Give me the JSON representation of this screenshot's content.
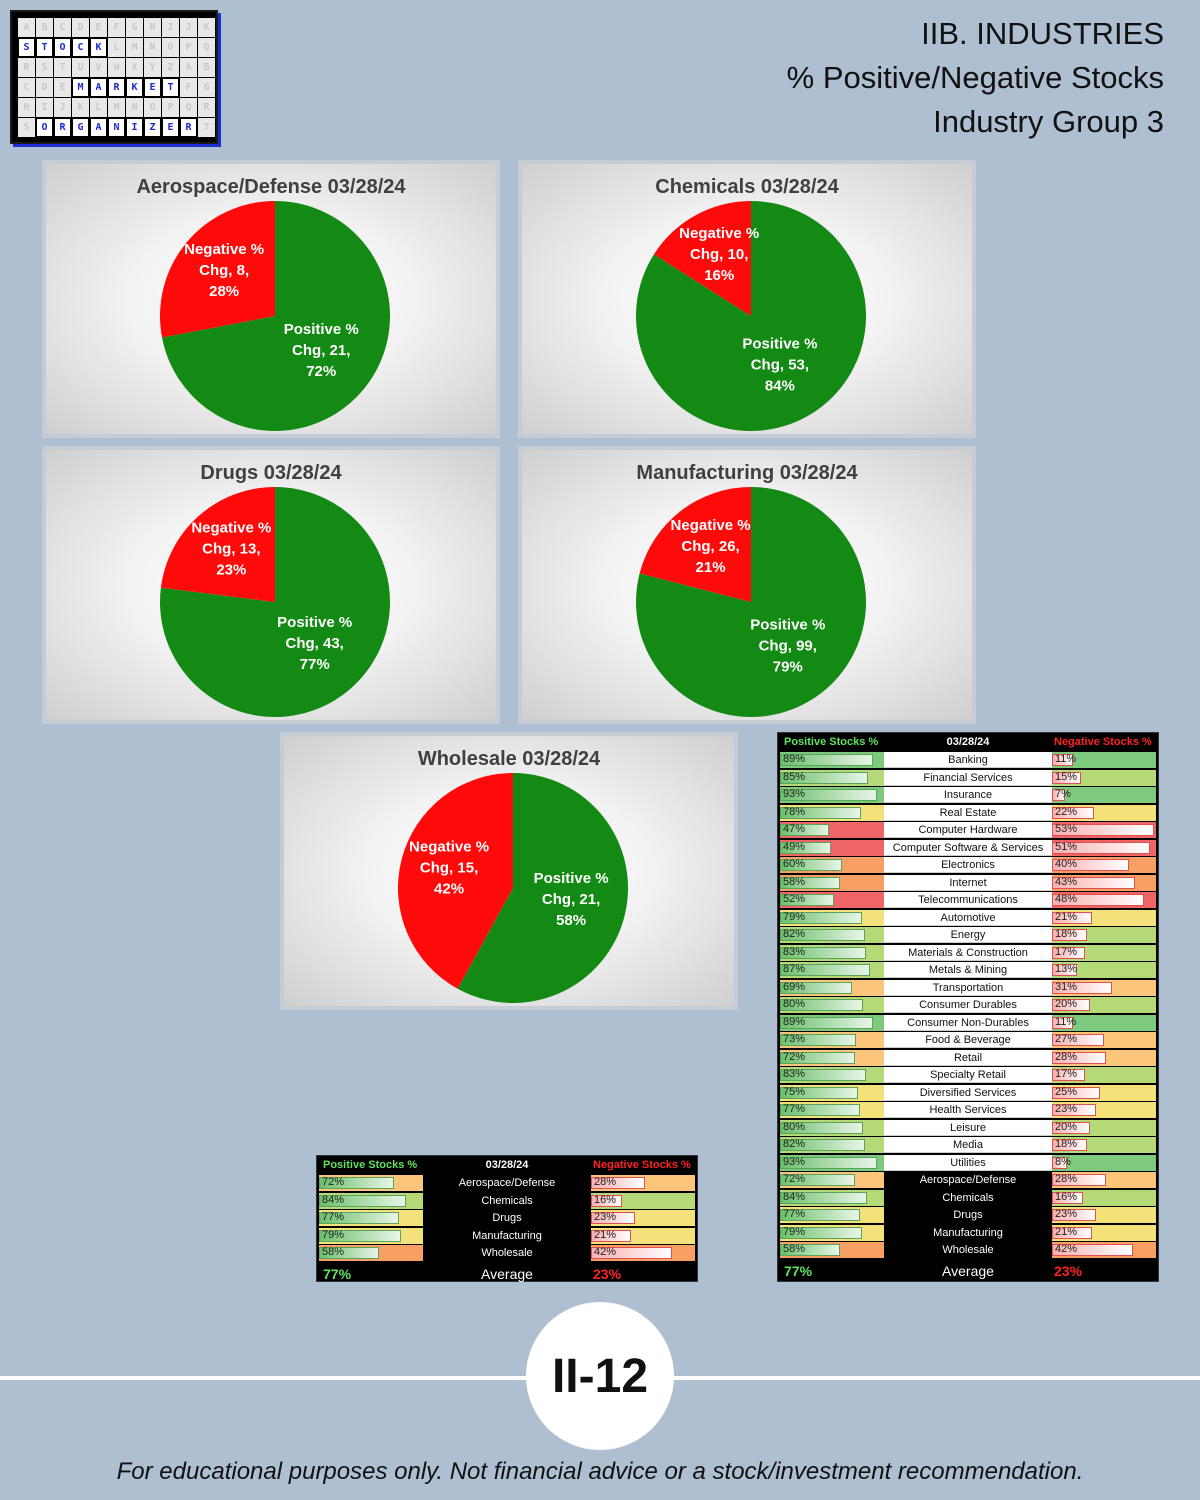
{
  "logo": {
    "rows": [
      [
        "A",
        "B",
        "C",
        "D",
        "E",
        "F",
        "G",
        "H",
        "I",
        "J",
        "K"
      ],
      [
        "S",
        "T",
        "O",
        "C",
        "K",
        "L",
        "M",
        "N",
        "O",
        "P",
        "Q"
      ],
      [
        "R",
        "S",
        "T",
        "U",
        "V",
        "W",
        "X",
        "Y",
        "Z",
        "A",
        "B"
      ],
      [
        "C",
        "D",
        "E",
        "M",
        "A",
        "R",
        "K",
        "E",
        "T",
        "F",
        "G"
      ],
      [
        "H",
        "I",
        "J",
        "K",
        "L",
        "M",
        "N",
        "O",
        "P",
        "Q",
        "R"
      ],
      [
        "S",
        "O",
        "R",
        "G",
        "A",
        "N",
        "I",
        "Z",
        "E",
        "R",
        "T"
      ]
    ],
    "words": [
      "STOCK",
      "MARKET",
      "ORGANIZER"
    ]
  },
  "header": {
    "line1": "IIB. INDUSTRIES",
    "line2": "% Positive/Negative Stocks",
    "line3": "Industry Group 3"
  },
  "colors": {
    "positive": "#138a13",
    "negative": "#ff0a0a",
    "background": "#adbfd0"
  },
  "chart_data": [
    {
      "type": "pie",
      "title": "Aerospace/Defense 03/28/24",
      "slices": [
        {
          "label": "Negative % Chg",
          "value": 8,
          "pct": "28%"
        },
        {
          "label": "Positive % Chg",
          "value": 21,
          "pct": "72%"
        }
      ]
    },
    {
      "type": "pie",
      "title": "Chemicals 03/28/24",
      "slices": [
        {
          "label": "Negative % Chg",
          "value": 10,
          "pct": "16%"
        },
        {
          "label": "Positive % Chg",
          "value": 53,
          "pct": "84%"
        }
      ]
    },
    {
      "type": "pie",
      "title": "Drugs 03/28/24",
      "slices": [
        {
          "label": "Negative % Chg",
          "value": 13,
          "pct": "23%"
        },
        {
          "label": "Positive % Chg",
          "value": 43,
          "pct": "77%"
        }
      ]
    },
    {
      "type": "pie",
      "title": "Manufacturing 03/28/24",
      "slices": [
        {
          "label": "Negative % Chg",
          "value": 26,
          "pct": "21%"
        },
        {
          "label": "Positive % Chg",
          "value": 99,
          "pct": "79%"
        }
      ]
    },
    {
      "type": "pie",
      "title": "Wholesale 03/28/24",
      "slices": [
        {
          "label": "Negative % Chg",
          "value": 15,
          "pct": "42%"
        },
        {
          "label": "Positive % Chg",
          "value": 21,
          "pct": "58%"
        }
      ]
    },
    {
      "type": "table",
      "header": {
        "positive": "Positive Stocks %",
        "date": "03/28/24",
        "negative": "Negative Stocks %"
      },
      "rows": [
        {
          "name": "Aerospace/Defense",
          "pos": "72%",
          "neg": "28%"
        },
        {
          "name": "Chemicals",
          "pos": "84%",
          "neg": "16%"
        },
        {
          "name": "Drugs",
          "pos": "77%",
          "neg": "23%"
        },
        {
          "name": "Manufacturing",
          "pos": "79%",
          "neg": "21%"
        },
        {
          "name": "Wholesale",
          "pos": "58%",
          "neg": "42%"
        }
      ],
      "average": {
        "pos": "77%",
        "label": "Average",
        "neg": "23%"
      }
    },
    {
      "type": "table",
      "header": {
        "positive": "Positive Stocks %",
        "date": "03/28/24",
        "negative": "Negative Stocks %"
      },
      "rows": [
        {
          "name": "Banking",
          "pos": "89%",
          "neg": "11%"
        },
        {
          "name": "Financial Services",
          "pos": "85%",
          "neg": "15%"
        },
        {
          "name": "Insurance",
          "pos": "93%",
          "neg": "7%"
        },
        {
          "name": "Real Estate",
          "pos": "78%",
          "neg": "22%"
        },
        {
          "name": "Computer Hardware",
          "pos": "47%",
          "neg": "53%"
        },
        {
          "name": "Computer Software & Services",
          "pos": "49%",
          "neg": "51%"
        },
        {
          "name": "Electronics",
          "pos": "60%",
          "neg": "40%"
        },
        {
          "name": "Internet",
          "pos": "58%",
          "neg": "43%"
        },
        {
          "name": "Telecommunications",
          "pos": "52%",
          "neg": "48%"
        },
        {
          "name": "Automotive",
          "pos": "79%",
          "neg": "21%"
        },
        {
          "name": "Energy",
          "pos": "82%",
          "neg": "18%"
        },
        {
          "name": "Materials & Construction",
          "pos": "83%",
          "neg": "17%"
        },
        {
          "name": "Metals & Mining",
          "pos": "87%",
          "neg": "13%"
        },
        {
          "name": "Transportation",
          "pos": "69%",
          "neg": "31%"
        },
        {
          "name": "Consumer Durables",
          "pos": "80%",
          "neg": "20%"
        },
        {
          "name": "Consumer Non-Durables",
          "pos": "89%",
          "neg": "11%"
        },
        {
          "name": "Food & Beverage",
          "pos": "73%",
          "neg": "27%"
        },
        {
          "name": "Retail",
          "pos": "72%",
          "neg": "28%"
        },
        {
          "name": "Specialty Retail",
          "pos": "83%",
          "neg": "17%"
        },
        {
          "name": "Diversified Services",
          "pos": "75%",
          "neg": "25%"
        },
        {
          "name": "Health Services",
          "pos": "77%",
          "neg": "23%"
        },
        {
          "name": "Leisure",
          "pos": "80%",
          "neg": "20%"
        },
        {
          "name": "Media",
          "pos": "82%",
          "neg": "18%"
        },
        {
          "name": "Utilities",
          "pos": "93%",
          "neg": "8%"
        },
        {
          "name": "Aerospace/Defense",
          "pos": "72%",
          "neg": "28%"
        },
        {
          "name": "Chemicals",
          "pos": "84%",
          "neg": "16%"
        },
        {
          "name": "Drugs",
          "pos": "77%",
          "neg": "23%"
        },
        {
          "name": "Manufacturing",
          "pos": "79%",
          "neg": "21%"
        },
        {
          "name": "Wholesale",
          "pos": "58%",
          "neg": "42%"
        }
      ],
      "average": {
        "pos": "77%",
        "label": "Average",
        "neg": "23%"
      }
    }
  ],
  "page_number": "II-12",
  "footer": "For educational purposes only. Not financial advice or a stock/investment recommendation."
}
